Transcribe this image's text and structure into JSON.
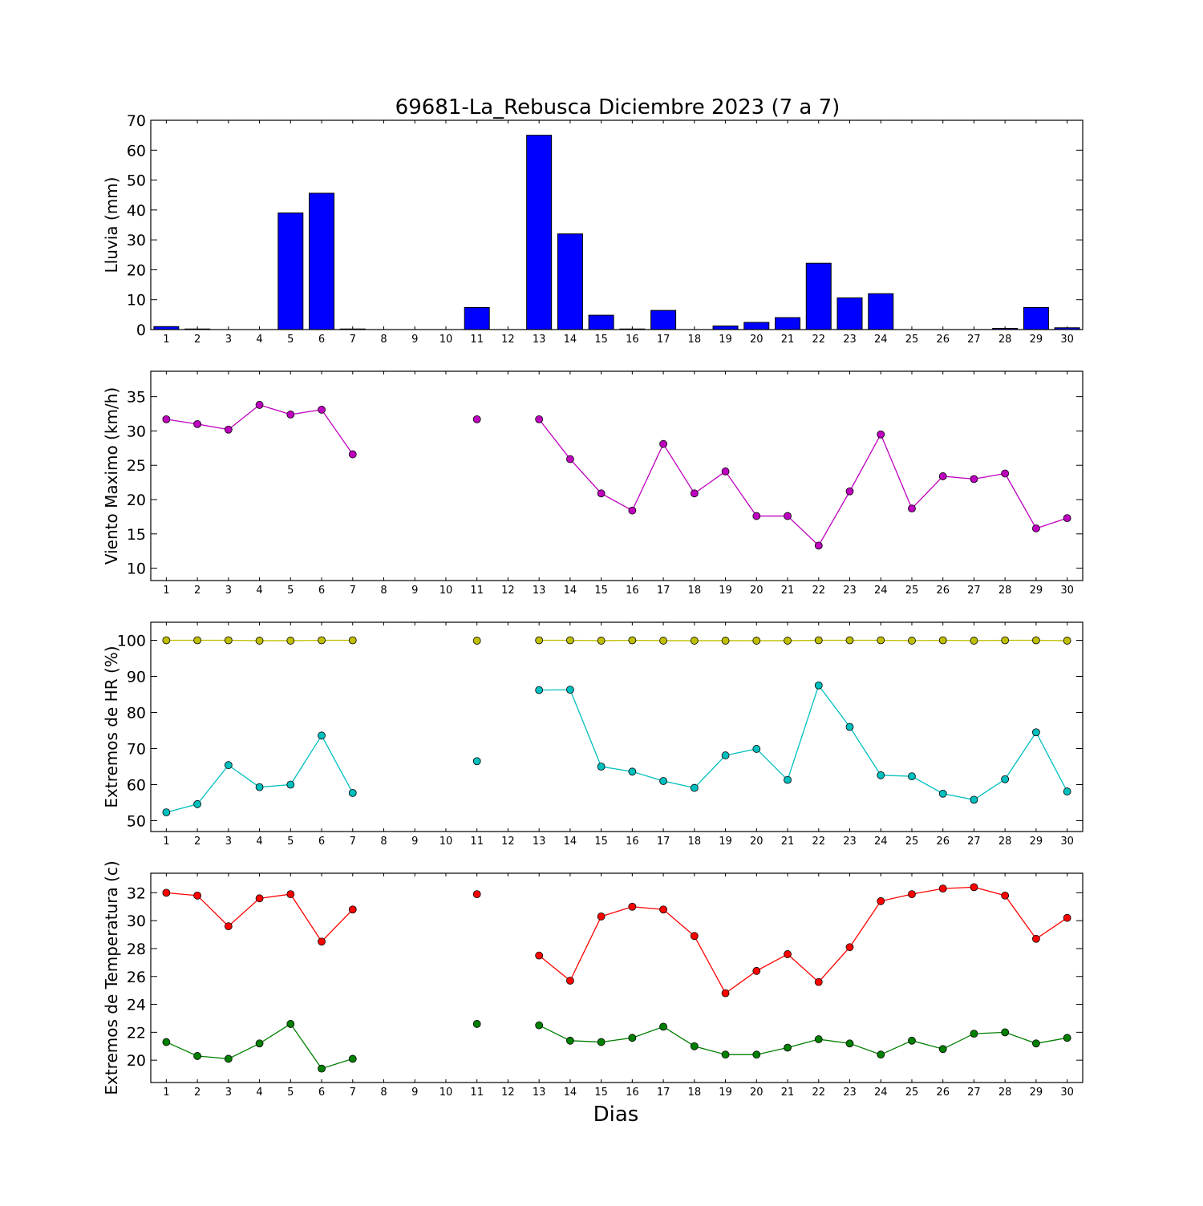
{
  "title": "69681-La_Rebusca Diciembre 2023  (7 a 7)",
  "xlabel": "Dias",
  "colors": {
    "rain": "#0000ff",
    "wind": "#bf00bf",
    "hr_max": "#bfbf00",
    "hr_min": "#00bfbf",
    "temp_max": "#ff0000",
    "temp_min": "#008000"
  },
  "chart_data": [
    {
      "type": "bar",
      "ylabel": "Lluvia (mm)",
      "categories": [
        "1",
        "2",
        "3",
        "4",
        "5",
        "6",
        "7",
        "8",
        "9",
        "10",
        "11",
        "12",
        "13",
        "14",
        "15",
        "16",
        "17",
        "18",
        "19",
        "20",
        "21",
        "22",
        "23",
        "24",
        "25",
        "26",
        "27",
        "28",
        "29",
        "30"
      ],
      "ylim": [
        0,
        70
      ],
      "yticks": [
        0,
        10,
        20,
        30,
        40,
        50,
        60,
        70
      ],
      "series": [
        {
          "values": [
            1.0,
            0.2,
            0.0,
            0.0,
            39.0,
            45.6,
            0.2,
            0.0,
            0.0,
            0.0,
            7.4,
            0.0,
            65.0,
            32.0,
            4.8,
            0.2,
            6.4,
            0.0,
            1.2,
            2.4,
            4.0,
            22.2,
            10.6,
            12.0,
            0.0,
            0.0,
            0.0,
            0.4,
            7.4,
            0.6
          ]
        }
      ]
    },
    {
      "type": "line",
      "ylabel": "Viento Maximo (km/h)",
      "categories": [
        "1",
        "2",
        "3",
        "4",
        "5",
        "6",
        "7",
        "8",
        "9",
        "10",
        "11",
        "12",
        "13",
        "14",
        "15",
        "16",
        "17",
        "18",
        "19",
        "20",
        "21",
        "22",
        "23",
        "24",
        "25",
        "26",
        "27",
        "28",
        "29",
        "30"
      ],
      "ylim": [
        8.2,
        38.7
      ],
      "yticks": [
        10,
        15,
        20,
        25,
        30,
        35
      ],
      "series": [
        {
          "values": [
            31.7,
            31.0,
            30.2,
            33.8,
            32.4,
            33.1,
            26.6,
            null,
            null,
            null,
            31.7,
            null,
            31.7,
            25.9,
            20.9,
            18.4,
            28.1,
            20.9,
            24.1,
            17.6,
            17.6,
            13.3,
            21.2,
            29.5,
            18.7,
            23.4,
            23.0,
            23.8,
            15.8,
            17.3
          ]
        }
      ]
    },
    {
      "type": "line",
      "ylabel": "Extremos de HR (%)",
      "categories": [
        "1",
        "2",
        "3",
        "4",
        "5",
        "6",
        "7",
        "8",
        "9",
        "10",
        "11",
        "12",
        "13",
        "14",
        "15",
        "16",
        "17",
        "18",
        "19",
        "20",
        "21",
        "22",
        "23",
        "24",
        "25",
        "26",
        "27",
        "28",
        "29",
        "30"
      ],
      "ylim": [
        47,
        105
      ],
      "yticks": [
        50,
        60,
        70,
        80,
        90,
        100
      ],
      "series": [
        {
          "values": [
            100.0,
            100.0,
            100.0,
            99.9,
            99.9,
            100.0,
            100.0,
            null,
            null,
            null,
            99.9,
            null,
            100.0,
            100.0,
            99.9,
            100.0,
            99.9,
            99.9,
            99.9,
            99.9,
            99.9,
            100.0,
            100.0,
            100.0,
            99.9,
            100.0,
            99.9,
            100.0,
            100.0,
            99.9
          ]
        },
        {
          "values": [
            52.3,
            54.6,
            65.4,
            59.3,
            60.0,
            73.6,
            57.7,
            null,
            null,
            null,
            66.5,
            null,
            86.2,
            86.3,
            65.0,
            63.6,
            61.0,
            59.1,
            68.1,
            69.9,
            61.3,
            87.5,
            76.0,
            62.6,
            62.3,
            57.5,
            55.8,
            61.5,
            74.5,
            58.1
          ]
        }
      ]
    },
    {
      "type": "line",
      "ylabel": "Extremos de Temperatura (c)",
      "categories": [
        "1",
        "2",
        "3",
        "4",
        "5",
        "6",
        "7",
        "8",
        "9",
        "10",
        "11",
        "12",
        "13",
        "14",
        "15",
        "16",
        "17",
        "18",
        "19",
        "20",
        "21",
        "22",
        "23",
        "24",
        "25",
        "26",
        "27",
        "28",
        "29",
        "30"
      ],
      "ylim": [
        18.4,
        33.4
      ],
      "yticks": [
        20,
        22,
        24,
        26,
        28,
        30,
        32
      ],
      "series": [
        {
          "values": [
            32.0,
            31.8,
            29.6,
            31.6,
            31.9,
            28.5,
            30.8,
            null,
            null,
            null,
            31.9,
            null,
            27.5,
            25.7,
            30.3,
            31.0,
            30.8,
            28.9,
            24.8,
            26.4,
            27.6,
            25.6,
            28.1,
            31.4,
            31.9,
            32.3,
            32.4,
            31.8,
            28.7,
            30.2
          ]
        },
        {
          "values": [
            21.3,
            20.3,
            20.1,
            21.2,
            22.6,
            19.4,
            20.1,
            null,
            null,
            null,
            22.6,
            null,
            22.5,
            21.4,
            21.3,
            21.6,
            22.4,
            21.0,
            20.4,
            20.4,
            20.9,
            21.5,
            21.2,
            20.4,
            21.4,
            20.8,
            21.9,
            22.0,
            21.2,
            21.6
          ]
        }
      ]
    }
  ]
}
